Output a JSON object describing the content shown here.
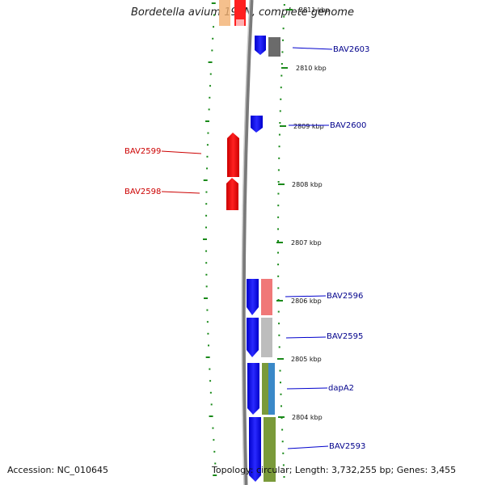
{
  "title": "Bordetella avium 197N, complete genome",
  "accession": "Accession: NC_010645",
  "topology": "Topology: circular; Length: 3,732,255 bp; Genes: 3,455",
  "colors": {
    "forward_gene": "#0000ff",
    "reverse_gene": "#ff0000",
    "label_forward": "#00008b",
    "label_reverse": "#cc0000",
    "tick": "#1a8a1a",
    "backbone": "#8c8c8c"
  },
  "kbp_markers": [
    "2811 kbp",
    "2810 kbp",
    "2809 kbp",
    "2808 kbp",
    "2807 kbp",
    "2806 kbp",
    "2805 kbp",
    "2804 kbp"
  ],
  "gene_labels": [
    {
      "name": "BAV2603",
      "side": "right",
      "color": "#00008b"
    },
    {
      "name": "BAV2600",
      "side": "right",
      "color": "#00008b"
    },
    {
      "name": "BAV2599",
      "side": "left",
      "color": "#cc0000"
    },
    {
      "name": "BAV2598",
      "side": "left",
      "color": "#cc0000"
    },
    {
      "name": "BAV2596",
      "side": "right",
      "color": "#00008b"
    },
    {
      "name": "BAV2595",
      "side": "right",
      "color": "#00008b"
    },
    {
      "name": "dapA2",
      "side": "right",
      "color": "#00008b"
    },
    {
      "name": "BAV2593",
      "side": "right",
      "color": "#00008b"
    }
  ]
}
